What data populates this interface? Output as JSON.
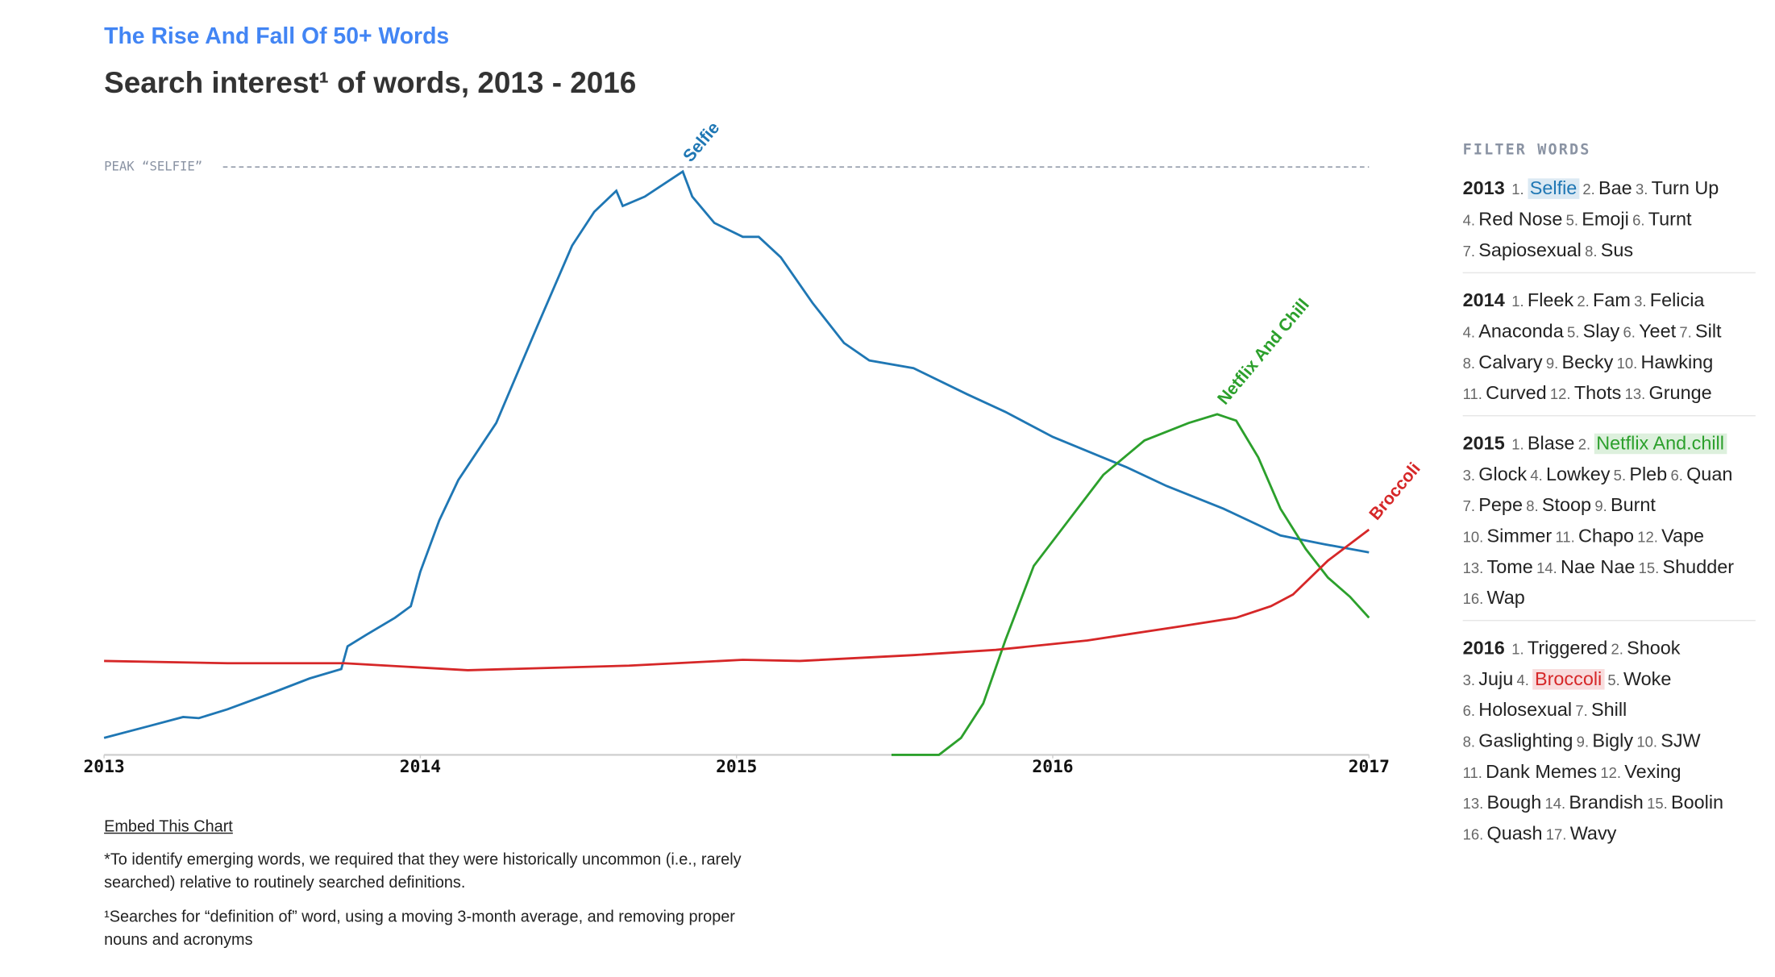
{
  "header": {
    "kicker": "The Rise And Fall Of 50+ Words"
  },
  "chart_data": {
    "type": "line",
    "title": "Search interest¹ of words, 2013 - 2016",
    "xlim": [
      2013,
      2017
    ],
    "xticks": [
      2013,
      2014,
      2015,
      2016,
      2017
    ],
    "ylim": [
      0,
      100
    ],
    "reference_line": {
      "label": "PEAK “SELFIE”",
      "value": 100
    },
    "series": [
      {
        "name": "Selfie",
        "color": "#1f77b4",
        "x": [
          2013.0,
          2013.14,
          2013.25,
          2013.3,
          2013.39,
          2013.54,
          2013.65,
          2013.75,
          2013.77,
          2013.83,
          2013.92,
          2013.97,
          2014.0,
          2014.06,
          2014.12,
          2014.24,
          2014.37,
          2014.48,
          2014.55,
          2014.62,
          2014.64,
          2014.71,
          2014.83,
          2014.86,
          2014.93,
          2015.02,
          2015.07,
          2015.14,
          2015.24,
          2015.34,
          2015.42,
          2015.56,
          2015.73,
          2015.85,
          2016.0,
          2016.14,
          2016.23,
          2016.36,
          2016.54,
          2016.72,
          2016.86,
          2017.0
        ],
        "values": [
          2.9,
          4.9,
          6.5,
          6.3,
          7.8,
          10.8,
          13.1,
          14.7,
          18.6,
          20.6,
          23.5,
          25.5,
          31.4,
          40.2,
          47.1,
          56.9,
          73.5,
          87.3,
          93.1,
          96.7,
          94.1,
          95.7,
          100,
          95.7,
          91.2,
          88.8,
          88.8,
          85.3,
          77.5,
          70.6,
          67.6,
          66.3,
          61.8,
          58.8,
          54.5,
          51.4,
          49.4,
          46.1,
          42.2,
          37.6,
          36.1,
          34.7
        ]
      },
      {
        "name": "Netflix And Chill",
        "color": "#2ca02c",
        "x": [
          2015.49,
          2015.64,
          2015.71,
          2015.78,
          2015.85,
          2015.94,
          2016.05,
          2016.16,
          2016.29,
          2016.43,
          2016.52,
          2016.58,
          2016.65,
          2016.72,
          2016.8,
          2016.87,
          2016.94,
          2017.0
        ],
        "values": [
          0,
          0,
          2.9,
          8.8,
          19.6,
          32.4,
          40.2,
          48.0,
          53.9,
          56.9,
          58.4,
          57.3,
          51.0,
          42.2,
          35.3,
          30.4,
          27.1,
          23.5
        ]
      },
      {
        "name": "Broccoli",
        "color": "#d62728",
        "x": [
          2013.0,
          2013.39,
          2013.76,
          2014.15,
          2014.66,
          2015.02,
          2015.2,
          2015.56,
          2015.82,
          2016.11,
          2016.4,
          2016.58,
          2016.69,
          2016.76,
          2016.87,
          2017.0
        ],
        "values": [
          16.1,
          15.7,
          15.7,
          14.5,
          15.3,
          16.3,
          16.1,
          17.1,
          18.0,
          19.6,
          22.0,
          23.5,
          25.5,
          27.5,
          33.3,
          38.6
        ]
      }
    ]
  },
  "filter": {
    "title": "FILTER WORDS",
    "groups": [
      {
        "year": "2013",
        "lines": [
          [
            {
              "num": "1.",
              "word": "Selfie",
              "highlight": "#1f77b4"
            },
            {
              "num": "2.",
              "word": "Bae"
            },
            {
              "num": "3.",
              "word": "Turn Up"
            }
          ],
          [
            {
              "num": "4.",
              "word": "Red Nose"
            },
            {
              "num": "5.",
              "word": "Emoji"
            },
            {
              "num": "6.",
              "word": "Turnt"
            }
          ],
          [
            {
              "num": "7.",
              "word": "Sapiosexual"
            },
            {
              "num": "8.",
              "word": "Sus"
            }
          ]
        ]
      },
      {
        "year": "2014",
        "lines": [
          [
            {
              "num": "1.",
              "word": "Fleek"
            },
            {
              "num": "2.",
              "word": "Fam"
            },
            {
              "num": "3.",
              "word": "Felicia"
            }
          ],
          [
            {
              "num": "4.",
              "word": "Anaconda"
            },
            {
              "num": "5.",
              "word": "Slay"
            },
            {
              "num": "6.",
              "word": "Yeet"
            },
            {
              "num": "7.",
              "word": "Silt"
            }
          ],
          [
            {
              "num": "8.",
              "word": "Calvary"
            },
            {
              "num": "9.",
              "word": "Becky"
            },
            {
              "num": "10.",
              "word": "Hawking"
            }
          ],
          [
            {
              "num": "11.",
              "word": "Curved"
            },
            {
              "num": "12.",
              "word": "Thots"
            },
            {
              "num": "13.",
              "word": "Grunge"
            }
          ]
        ]
      },
      {
        "year": "2015",
        "lines": [
          [
            {
              "num": "1.",
              "word": "Blase"
            },
            {
              "num": "2.",
              "word": "Netflix And.chill",
              "highlight": "#2ca02c"
            }
          ],
          [
            {
              "num": "3.",
              "word": "Glock"
            },
            {
              "num": "4.",
              "word": "Lowkey"
            },
            {
              "num": "5.",
              "word": "Pleb"
            },
            {
              "num": "6.",
              "word": "Quan"
            }
          ],
          [
            {
              "num": "7.",
              "word": "Pepe"
            },
            {
              "num": "8.",
              "word": "Stoop"
            },
            {
              "num": "9.",
              "word": "Burnt"
            }
          ],
          [
            {
              "num": "10.",
              "word": "Simmer"
            },
            {
              "num": "11.",
              "word": "Chapo"
            },
            {
              "num": "12.",
              "word": "Vape"
            }
          ],
          [
            {
              "num": "13.",
              "word": "Tome"
            },
            {
              "num": "14.",
              "word": "Nae Nae"
            },
            {
              "num": "15.",
              "word": "Shudder"
            }
          ],
          [
            {
              "num": "16.",
              "word": "Wap"
            }
          ]
        ]
      },
      {
        "year": "2016",
        "lines": [
          [
            {
              "num": "1.",
              "word": "Triggered"
            },
            {
              "num": "2.",
              "word": "Shook"
            }
          ],
          [
            {
              "num": "3.",
              "word": "Juju"
            },
            {
              "num": "4.",
              "word": "Broccoli",
              "highlight": "#d62728"
            },
            {
              "num": "5.",
              "word": "Woke"
            }
          ],
          [
            {
              "num": "6.",
              "word": "Holosexual"
            },
            {
              "num": "7.",
              "word": "Shill"
            }
          ],
          [
            {
              "num": "8.",
              "word": "Gaslighting"
            },
            {
              "num": "9.",
              "word": "Bigly"
            },
            {
              "num": "10.",
              "word": "SJW"
            }
          ],
          [
            {
              "num": "11.",
              "word": "Dank Memes"
            },
            {
              "num": "12.",
              "word": "Vexing"
            }
          ],
          [
            {
              "num": "13.",
              "word": "Bough"
            },
            {
              "num": "14.",
              "word": "Brandish"
            },
            {
              "num": "15.",
              "word": "Boolin"
            }
          ],
          [
            {
              "num": "16.",
              "word": "Quash"
            },
            {
              "num": "17.",
              "word": "Wavy"
            }
          ]
        ]
      }
    ]
  },
  "footer": {
    "embed": "Embed This Chart",
    "notes": [
      "*To identify emerging words, we required that they were historically uncommon (i.e., rarely searched) relative to routinely searched definitions.",
      "¹Searches for “definition of” word, using a moving 3-month average, and removing proper nouns and acronyms"
    ]
  }
}
